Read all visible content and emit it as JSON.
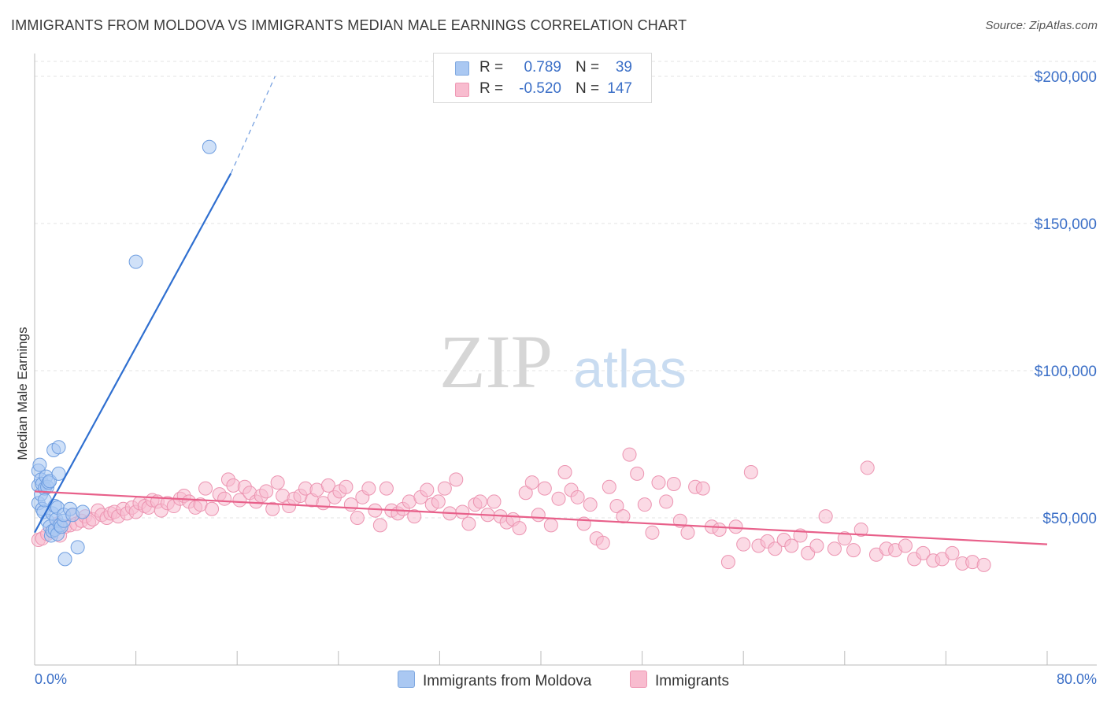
{
  "title": "IMMIGRANTS FROM MOLDOVA VS IMMIGRANTS MEDIAN MALE EARNINGS CORRELATION CHART",
  "source": "Source: ZipAtlas.com",
  "watermark": {
    "zip": "ZIP",
    "atlas": "atlas"
  },
  "legend_stats": [
    {
      "r_label": "R =",
      "r_value": "0.789",
      "n_label": "N =",
      "n_value": "39",
      "color": "#aac8f2",
      "border": "#7fa8e0"
    },
    {
      "r_label": "R =",
      "r_value": "-0.520",
      "n_label": "N =",
      "n_value": "147",
      "color": "#f8bccf",
      "border": "#ef98b4"
    }
  ],
  "legend_bottom": [
    {
      "label": "Immigrants from Moldova",
      "color": "#aac8f2",
      "border": "#7fa8e0"
    },
    {
      "label": "Immigrants",
      "color": "#f8bccf",
      "border": "#ef98b4"
    }
  ],
  "chart_data": {
    "type": "scatter",
    "ylabel": "Median Male Earnings",
    "xlim": [
      0,
      80
    ],
    "ylim": [
      0,
      210000
    ],
    "x_tick_labels": {
      "min": "0.0%",
      "max": "80.0%"
    },
    "y_ticks": [
      {
        "value": 50000,
        "label": "$50,000"
      },
      {
        "value": 100000,
        "label": "$100,000"
      },
      {
        "value": 150000,
        "label": "$150,000"
      },
      {
        "value": 200000,
        "label": "$200,000"
      }
    ],
    "grid": true,
    "colors": {
      "blue_fill": "#aac8f2",
      "blue_stroke": "#6f9ee0",
      "blue_line": "#2f6fd0",
      "pink_fill": "#f8bccf",
      "pink_stroke": "#ec94b1",
      "pink_line": "#e8608a",
      "tick_label": "#3b6fc7"
    },
    "series": [
      {
        "name": "Immigrants from Moldova",
        "trend": {
          "x": [
            0,
            15.5
          ],
          "y": [
            45000,
            167000
          ],
          "dashed_to": {
            "x": 19,
            "y": 200000
          }
        },
        "points": [
          [
            0.3,
            66000
          ],
          [
            0.3,
            61000
          ],
          [
            0.3,
            55000
          ],
          [
            0.4,
            68000
          ],
          [
            0.5,
            63000
          ],
          [
            0.5,
            58000
          ],
          [
            0.6,
            61500
          ],
          [
            0.6,
            53000
          ],
          [
            0.7,
            52000
          ],
          [
            0.8,
            60000
          ],
          [
            0.8,
            56000
          ],
          [
            0.9,
            64000
          ],
          [
            1.0,
            60500
          ],
          [
            1.0,
            49000
          ],
          [
            1.1,
            62000
          ],
          [
            1.2,
            62500
          ],
          [
            1.2,
            47000
          ],
          [
            1.3,
            44000
          ],
          [
            1.4,
            45500
          ],
          [
            1.4,
            51500
          ],
          [
            1.5,
            73000
          ],
          [
            1.6,
            54000
          ],
          [
            1.6,
            46000
          ],
          [
            1.7,
            49500
          ],
          [
            1.8,
            53500
          ],
          [
            1.8,
            44500
          ],
          [
            1.9,
            74000
          ],
          [
            1.9,
            65000
          ],
          [
            2.0,
            47500
          ],
          [
            2.1,
            47000
          ],
          [
            2.3,
            49000
          ],
          [
            2.3,
            51000
          ],
          [
            2.4,
            36000
          ],
          [
            2.8,
            53000
          ],
          [
            3.0,
            51000
          ],
          [
            3.4,
            40000
          ],
          [
            3.8,
            52000
          ],
          [
            8.0,
            137000
          ],
          [
            13.8,
            176000
          ]
        ]
      },
      {
        "name": "Immigrants",
        "trend": {
          "x": [
            0,
            80
          ],
          "y": [
            59000,
            41000
          ]
        },
        "points": [
          [
            0.3,
            42500
          ],
          [
            0.6,
            43000
          ],
          [
            1.0,
            44500
          ],
          [
            1.4,
            45500
          ],
          [
            1.8,
            48000
          ],
          [
            2.0,
            44000
          ],
          [
            2.4,
            47000
          ],
          [
            2.8,
            47500
          ],
          [
            3.0,
            51000
          ],
          [
            3.3,
            48000
          ],
          [
            3.7,
            49000
          ],
          [
            4.0,
            50500
          ],
          [
            4.3,
            48500
          ],
          [
            4.6,
            49500
          ],
          [
            5.0,
            52500
          ],
          [
            5.3,
            51000
          ],
          [
            5.7,
            50000
          ],
          [
            6.0,
            51500
          ],
          [
            6.3,
            52000
          ],
          [
            6.6,
            50500
          ],
          [
            7.0,
            53000
          ],
          [
            7.3,
            51500
          ],
          [
            7.7,
            53500
          ],
          [
            8.0,
            52000
          ],
          [
            8.3,
            55000
          ],
          [
            8.7,
            54000
          ],
          [
            9.0,
            53500
          ],
          [
            9.3,
            56000
          ],
          [
            9.7,
            55500
          ],
          [
            10.0,
            52500
          ],
          [
            10.5,
            55000
          ],
          [
            11.0,
            54000
          ],
          [
            11.5,
            56500
          ],
          [
            11.8,
            57500
          ],
          [
            12.2,
            55500
          ],
          [
            12.7,
            53500
          ],
          [
            13.1,
            54500
          ],
          [
            13.5,
            60000
          ],
          [
            14.0,
            53000
          ],
          [
            14.6,
            58000
          ],
          [
            15.0,
            56500
          ],
          [
            15.3,
            63000
          ],
          [
            15.7,
            61000
          ],
          [
            16.2,
            56000
          ],
          [
            16.6,
            60500
          ],
          [
            17.0,
            58500
          ],
          [
            17.5,
            55500
          ],
          [
            17.9,
            57500
          ],
          [
            18.3,
            59000
          ],
          [
            18.8,
            53000
          ],
          [
            19.2,
            62000
          ],
          [
            19.6,
            57500
          ],
          [
            20.1,
            54000
          ],
          [
            20.5,
            56500
          ],
          [
            21.0,
            57500
          ],
          [
            21.4,
            60000
          ],
          [
            21.9,
            56000
          ],
          [
            22.3,
            59500
          ],
          [
            22.8,
            55000
          ],
          [
            23.2,
            61000
          ],
          [
            23.7,
            57000
          ],
          [
            24.1,
            59000
          ],
          [
            24.6,
            60500
          ],
          [
            25.0,
            54500
          ],
          [
            25.5,
            50000
          ],
          [
            25.9,
            57000
          ],
          [
            26.4,
            60000
          ],
          [
            26.9,
            52500
          ],
          [
            27.3,
            47500
          ],
          [
            27.8,
            60000
          ],
          [
            28.2,
            52500
          ],
          [
            28.7,
            51500
          ],
          [
            29.1,
            53000
          ],
          [
            29.6,
            55500
          ],
          [
            30.0,
            50500
          ],
          [
            30.5,
            57000
          ],
          [
            31.0,
            59500
          ],
          [
            31.4,
            54500
          ],
          [
            31.9,
            55500
          ],
          [
            32.4,
            60000
          ],
          [
            32.8,
            51500
          ],
          [
            33.3,
            63000
          ],
          [
            33.8,
            52000
          ],
          [
            34.3,
            48000
          ],
          [
            34.8,
            54500
          ],
          [
            35.2,
            55500
          ],
          [
            35.8,
            51000
          ],
          [
            36.3,
            55500
          ],
          [
            36.8,
            50500
          ],
          [
            37.3,
            48500
          ],
          [
            37.8,
            49500
          ],
          [
            38.3,
            46500
          ],
          [
            38.8,
            58500
          ],
          [
            39.3,
            62000
          ],
          [
            39.8,
            51000
          ],
          [
            40.3,
            60000
          ],
          [
            40.8,
            47500
          ],
          [
            41.4,
            56500
          ],
          [
            41.9,
            65500
          ],
          [
            42.4,
            59500
          ],
          [
            42.9,
            57000
          ],
          [
            43.4,
            48000
          ],
          [
            43.9,
            54500
          ],
          [
            44.4,
            43000
          ],
          [
            44.9,
            41500
          ],
          [
            45.4,
            60500
          ],
          [
            46.0,
            54000
          ],
          [
            46.5,
            50500
          ],
          [
            47.0,
            71500
          ],
          [
            47.6,
            65000
          ],
          [
            48.2,
            54500
          ],
          [
            48.8,
            45000
          ],
          [
            49.3,
            62000
          ],
          [
            49.9,
            55500
          ],
          [
            50.5,
            61500
          ],
          [
            51.0,
            49000
          ],
          [
            51.6,
            45000
          ],
          [
            52.2,
            60500
          ],
          [
            52.8,
            60000
          ],
          [
            53.5,
            47000
          ],
          [
            54.1,
            46000
          ],
          [
            54.8,
            35000
          ],
          [
            55.4,
            47000
          ],
          [
            56.0,
            41000
          ],
          [
            56.6,
            65500
          ],
          [
            57.2,
            40500
          ],
          [
            57.9,
            42000
          ],
          [
            58.5,
            39500
          ],
          [
            59.2,
            42500
          ],
          [
            59.8,
            40500
          ],
          [
            60.5,
            44000
          ],
          [
            61.1,
            38000
          ],
          [
            61.8,
            40500
          ],
          [
            62.5,
            50500
          ],
          [
            63.2,
            39500
          ],
          [
            64.0,
            43000
          ],
          [
            64.7,
            39000
          ],
          [
            65.3,
            46000
          ],
          [
            65.8,
            67000
          ],
          [
            66.5,
            37500
          ],
          [
            67.3,
            39500
          ],
          [
            68.0,
            39000
          ],
          [
            68.8,
            40500
          ],
          [
            69.5,
            36000
          ],
          [
            70.2,
            38000
          ],
          [
            71.0,
            35500
          ],
          [
            71.7,
            36000
          ],
          [
            72.5,
            38000
          ],
          [
            73.3,
            34500
          ],
          [
            74.1,
            35000
          ],
          [
            75.0,
            34000
          ]
        ]
      }
    ]
  }
}
